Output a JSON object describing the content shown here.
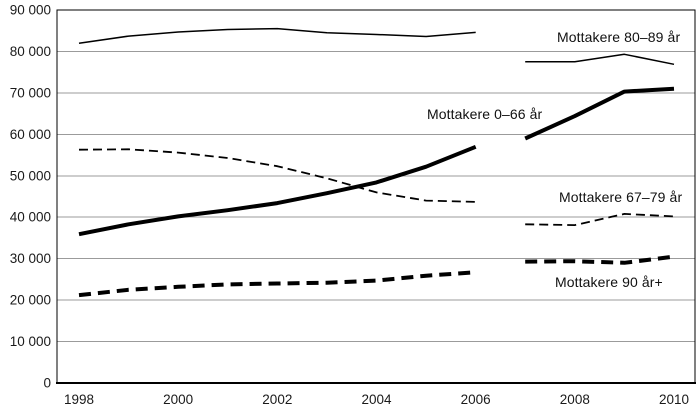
{
  "chart_data": {
    "type": "line",
    "title": "",
    "xlabel": "",
    "ylabel": "",
    "grid": true,
    "legend_position": "inline-labels",
    "xlim": [
      1997.55,
      2010.45
    ],
    "ylim": [
      0,
      90000
    ],
    "x_ticks": [
      {
        "value": 1998,
        "label": "1998"
      },
      {
        "value": 2000,
        "label": "2000"
      },
      {
        "value": 2002,
        "label": "2002"
      },
      {
        "value": 2004,
        "label": "2004"
      },
      {
        "value": 2006,
        "label": "2006"
      },
      {
        "value": 2008,
        "label": "2008"
      },
      {
        "value": 2010,
        "label": "2010"
      }
    ],
    "y_ticks": [
      {
        "value": 0,
        "label": "0"
      },
      {
        "value": 10000,
        "label": "10 000"
      },
      {
        "value": 20000,
        "label": "20 000"
      },
      {
        "value": 30000,
        "label": "30 000"
      },
      {
        "value": 40000,
        "label": "40 000"
      },
      {
        "value": 50000,
        "label": "50 000"
      },
      {
        "value": 60000,
        "label": "60 000"
      },
      {
        "value": 70000,
        "label": "70 000"
      },
      {
        "value": 80000,
        "label": "80 000"
      },
      {
        "value": 90000,
        "label": "90 000"
      }
    ],
    "series_break_note": "all series have a gap between 2006 and 2007",
    "colors": {
      "line": "#000000",
      "grid": "#9b9b9b",
      "text": "#1a1a1a"
    },
    "series": [
      {
        "name": "Mottakere 80–89 år",
        "line_style": "thin-solid",
        "segments": [
          {
            "years": [
              1998,
              1999,
              2000,
              2001,
              2002,
              2003,
              2004,
              2005,
              2006
            ],
            "values": [
              82000,
              83700,
              84700,
              85300,
              85500,
              84500,
              84100,
              83600,
              84600
            ]
          },
          {
            "years": [
              2007,
              2008,
              2009,
              2010
            ],
            "values": [
              77500,
              77500,
              79300,
              76900
            ]
          }
        ]
      },
      {
        "name": "Mottakere 67–79 år",
        "line_style": "thin-dashed",
        "segments": [
          {
            "years": [
              1998,
              1999,
              2000,
              2001,
              2002,
              2003,
              2004,
              2005,
              2006
            ],
            "values": [
              56300,
              56400,
              55600,
              54300,
              52300,
              49400,
              46000,
              44000,
              43700
            ]
          },
          {
            "years": [
              2007,
              2008,
              2009,
              2010
            ],
            "values": [
              38300,
              38100,
              40800,
              40200
            ]
          }
        ]
      },
      {
        "name": "Mottakere 90 år+",
        "line_style": "thick-dashed",
        "segments": [
          {
            "years": [
              1998,
              1999,
              2000,
              2001,
              2002,
              2003,
              2004,
              2005,
              2006
            ],
            "values": [
              21200,
              22500,
              23200,
              23800,
              24000,
              24200,
              24700,
              25900,
              26700
            ]
          },
          {
            "years": [
              2007,
              2008,
              2009,
              2010
            ],
            "values": [
              29300,
              29400,
              29000,
              30500
            ]
          }
        ]
      },
      {
        "name": "Mottakere 0–66 år",
        "line_style": "thick-solid",
        "segments": [
          {
            "years": [
              1998,
              1999,
              2000,
              2001,
              2002,
              2003,
              2004,
              2005,
              2006
            ],
            "values": [
              35900,
              38300,
              40200,
              41700,
              43400,
              45800,
              48400,
              52200,
              57000
            ]
          },
          {
            "years": [
              2007,
              2008,
              2009,
              2010
            ],
            "values": [
              59000,
              64400,
              70300,
              71000
            ]
          }
        ]
      }
    ]
  }
}
